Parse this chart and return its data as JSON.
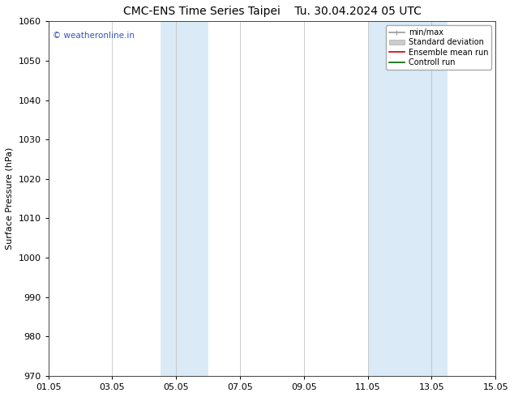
{
  "title_left": "CMC-ENS Time Series Taipei",
  "title_right": "Tu. 30.04.2024 05 UTC",
  "ylabel": "Surface Pressure (hPa)",
  "ylim": [
    970,
    1060
  ],
  "yticks": [
    970,
    980,
    990,
    1000,
    1010,
    1020,
    1030,
    1040,
    1050,
    1060
  ],
  "xlim": [
    0,
    14
  ],
  "xtick_labels": [
    "01.05",
    "03.05",
    "05.05",
    "07.05",
    "09.05",
    "11.05",
    "13.05",
    "15.05"
  ],
  "xtick_positions": [
    0,
    2,
    4,
    6,
    8,
    10,
    12,
    14
  ],
  "shade_bands": [
    {
      "x_start": 3.5,
      "x_end": 5.0,
      "color": "#daeaf7"
    },
    {
      "x_start": 10.0,
      "x_end": 12.5,
      "color": "#daeaf7"
    }
  ],
  "watermark_text": "© weatheronline.in",
  "watermark_color": "#3355bb",
  "legend_items": [
    {
      "label": "min/max",
      "color": "#999999",
      "lw": 1.2
    },
    {
      "label": "Standard deviation",
      "color": "#cccccc",
      "lw": 5
    },
    {
      "label": "Ensemble mean run",
      "color": "#cc0000",
      "lw": 1.2
    },
    {
      "label": "Controll run",
      "color": "#006600",
      "lw": 1.2
    }
  ],
  "bg_color": "#ffffff",
  "plot_bg_color": "#ffffff",
  "grid_color": "#bbbbbb",
  "title_fontsize": 10,
  "ylabel_fontsize": 8,
  "tick_fontsize": 8,
  "legend_fontsize": 7,
  "watermark_fontsize": 7.5
}
